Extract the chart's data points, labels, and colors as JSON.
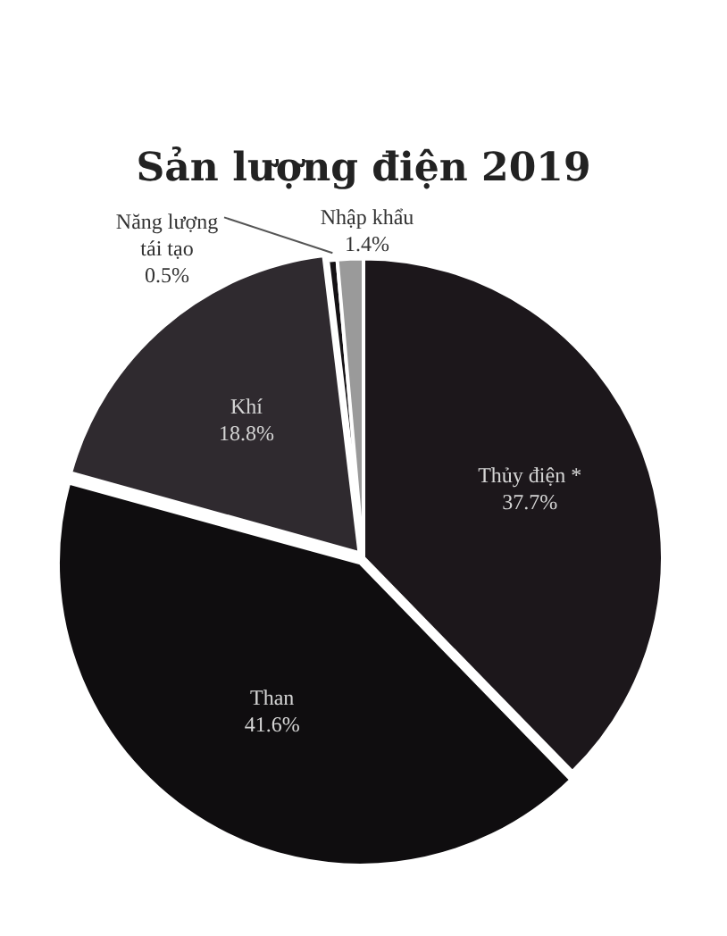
{
  "chart_data": {
    "type": "pie",
    "title": "Sản lượng điện 2019",
    "categories": [
      "Thủy điện *",
      "Than",
      "Khí",
      "Năng lượng tái tạo",
      "Nhập khẩu"
    ],
    "values": [
      37.7,
      41.6,
      18.8,
      0.5,
      1.4
    ],
    "value_labels": [
      "37.7%",
      "41.6%",
      "18.8%",
      "0.5%",
      "1.4%"
    ],
    "colors": [
      "#1c171b",
      "#0f0d0f",
      "#2f2a2f",
      "#151215",
      "#9a9a9a"
    ],
    "legend": false
  }
}
